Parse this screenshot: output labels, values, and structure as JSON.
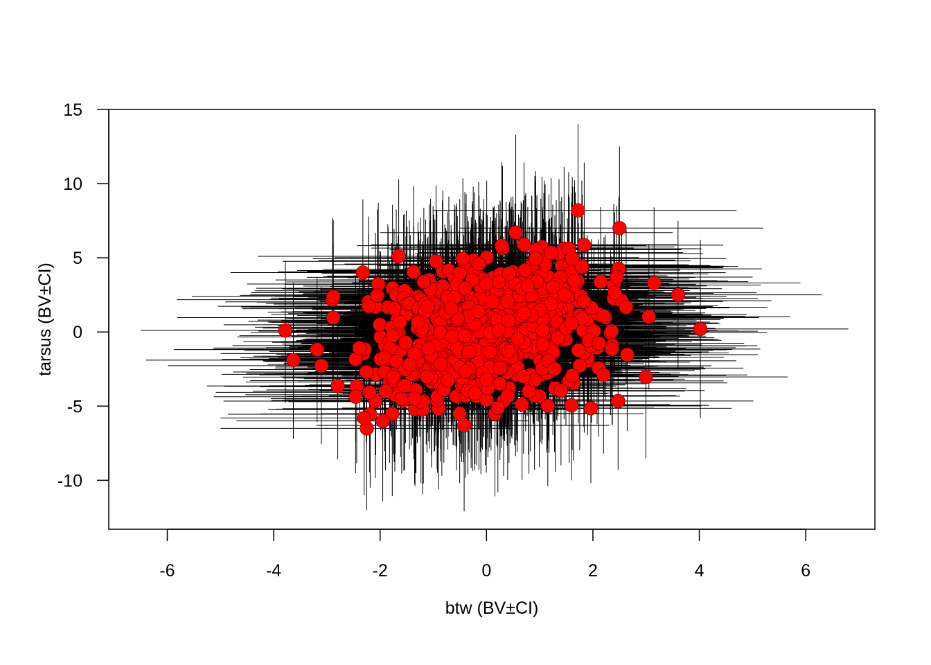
{
  "chart_data": {
    "type": "scatter",
    "title": "",
    "xlabel": "btw (BV±CI)",
    "ylabel": "tarsus (BV±CI)",
    "xlim": [
      -7.1,
      7.3
    ],
    "ylim": [
      -13.3,
      15.0
    ],
    "x_ticks": [
      "-6",
      "-4",
      "-2",
      "0",
      "2",
      "4",
      "6"
    ],
    "y_ticks": [
      "-10",
      "-5",
      "0",
      "5",
      "10",
      "15"
    ],
    "grid": false,
    "legend": "none",
    "point_color": "#ff0000",
    "point_edge_color": "#000000",
    "error_bar_color": "#000000",
    "n_points_estimated": 800,
    "named_points": [
      {
        "x": 1.72,
        "y": 8.2,
        "xci": [
          -1.0,
          4.7
        ],
        "yci": [
          3.0,
          14.0
        ]
      },
      {
        "x": 0.55,
        "y": 6.7,
        "xci": [
          -2.0,
          3.5
        ],
        "yci": [
          1.0,
          13.3
        ]
      },
      {
        "x": 2.5,
        "y": 7.0,
        "xci": [
          -0.5,
          5.2
        ],
        "yci": [
          1.5,
          12.5
        ]
      },
      {
        "x": -1.65,
        "y": 5.1,
        "xci": [
          -4.3,
          1.0
        ],
        "yci": [
          0.0,
          10.3
        ]
      },
      {
        "x": -3.78,
        "y": 0.1,
        "xci": [
          -6.5,
          -1.1
        ],
        "yci": [
          -4.8,
          4.8
        ]
      },
      {
        "x": -3.63,
        "y": -1.9,
        "xci": [
          -6.4,
          -0.9
        ],
        "yci": [
          -7.2,
          3.3
        ]
      },
      {
        "x": 4.02,
        "y": 0.2,
        "xci": [
          1.3,
          6.8
        ],
        "yci": [
          -5.8,
          6.2
        ]
      },
      {
        "x": 3.6,
        "y": 2.5,
        "xci": [
          0.9,
          6.3
        ],
        "yci": [
          -2.5,
          7.5
        ]
      },
      {
        "x": 3.15,
        "y": 3.3,
        "xci": [
          0.4,
          5.9
        ],
        "yci": [
          -1.8,
          8.4
        ]
      },
      {
        "x": 2.2,
        "y": -2.9,
        "xci": [
          -0.5,
          4.9
        ],
        "yci": [
          -8.2,
          2.3
        ]
      },
      {
        "x": -0.42,
        "y": -6.3,
        "xci": [
          -3.2,
          2.3
        ],
        "yci": [
          -12.1,
          -0.5
        ]
      },
      {
        "x": -2.25,
        "y": -6.5,
        "xci": [
          -5.0,
          0.5
        ],
        "yci": [
          -12.0,
          -1.0
        ]
      },
      {
        "x": -1.95,
        "y": -6.0,
        "xci": [
          -4.7,
          0.8
        ],
        "yci": [
          -11.4,
          -0.6
        ]
      },
      {
        "x": -2.3,
        "y": -5.8,
        "xci": [
          -5.0,
          0.4
        ],
        "yci": [
          -11.0,
          -0.6
        ]
      },
      {
        "x": 2.35,
        "y": 0.05,
        "xci": [
          -0.4,
          5.1
        ],
        "yci": [
          -5.0,
          5.1
        ]
      },
      {
        "x": 1.4,
        "y": -3.95,
        "xci": [
          -1.3,
          4.1
        ],
        "yci": [
          -9.0,
          1.1
        ]
      }
    ]
  }
}
